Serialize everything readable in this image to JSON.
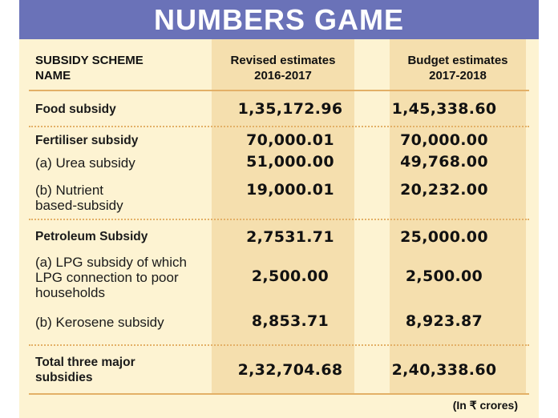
{
  "title": "NUMBERS GAME",
  "headers": {
    "col0": [
      "SUBSIDY SCHEME",
      "NAME"
    ],
    "col1": [
      "Revised estimates",
      "2016-2017"
    ],
    "col2": [
      "Budget estimates",
      "2017-2018"
    ]
  },
  "rows": [
    {
      "label": [
        "Food subsidy"
      ],
      "bold": true,
      "v1": "1,35,172.96",
      "v2": "1,45,338.60"
    },
    {
      "label": [
        "Fertiliser subsidy"
      ],
      "bold": true,
      "v1": "70,000.01",
      "v2": "70,000.00"
    },
    {
      "label": [
        "(a) Urea subsidy"
      ],
      "bold": false,
      "v1": "51,000.00",
      "v2": "49,768.00"
    },
    {
      "label": [
        "(b) Nutrient",
        "based-subsidy"
      ],
      "bold": false,
      "v1": "19,000.01",
      "v2": "20,232.00"
    },
    {
      "label": [
        "Petroleum Subsidy"
      ],
      "bold": true,
      "v1": "2,7531.71",
      "v2": "25,000.00"
    },
    {
      "label": [
        "(a) LPG subsidy of which",
        "LPG connection to poor",
        "households"
      ],
      "bold": false,
      "v1": "2,500.00",
      "v2": "2,500.00"
    },
    {
      "label": [
        "(b) Kerosene subsidy"
      ],
      "bold": false,
      "v1": "8,853.71",
      "v2": "8,923.87"
    },
    {
      "label": [
        "Total three major",
        "subsidies"
      ],
      "bold": true,
      "v1": "2,32,704.68",
      "v2": "2,40,338.60"
    }
  ],
  "footnote": "(In ₹ crores)",
  "colors": {
    "title_bar": "#6a72b8",
    "background": "#fdf3d2",
    "column_band": "#f5dfae",
    "rule": "#e3b067"
  }
}
